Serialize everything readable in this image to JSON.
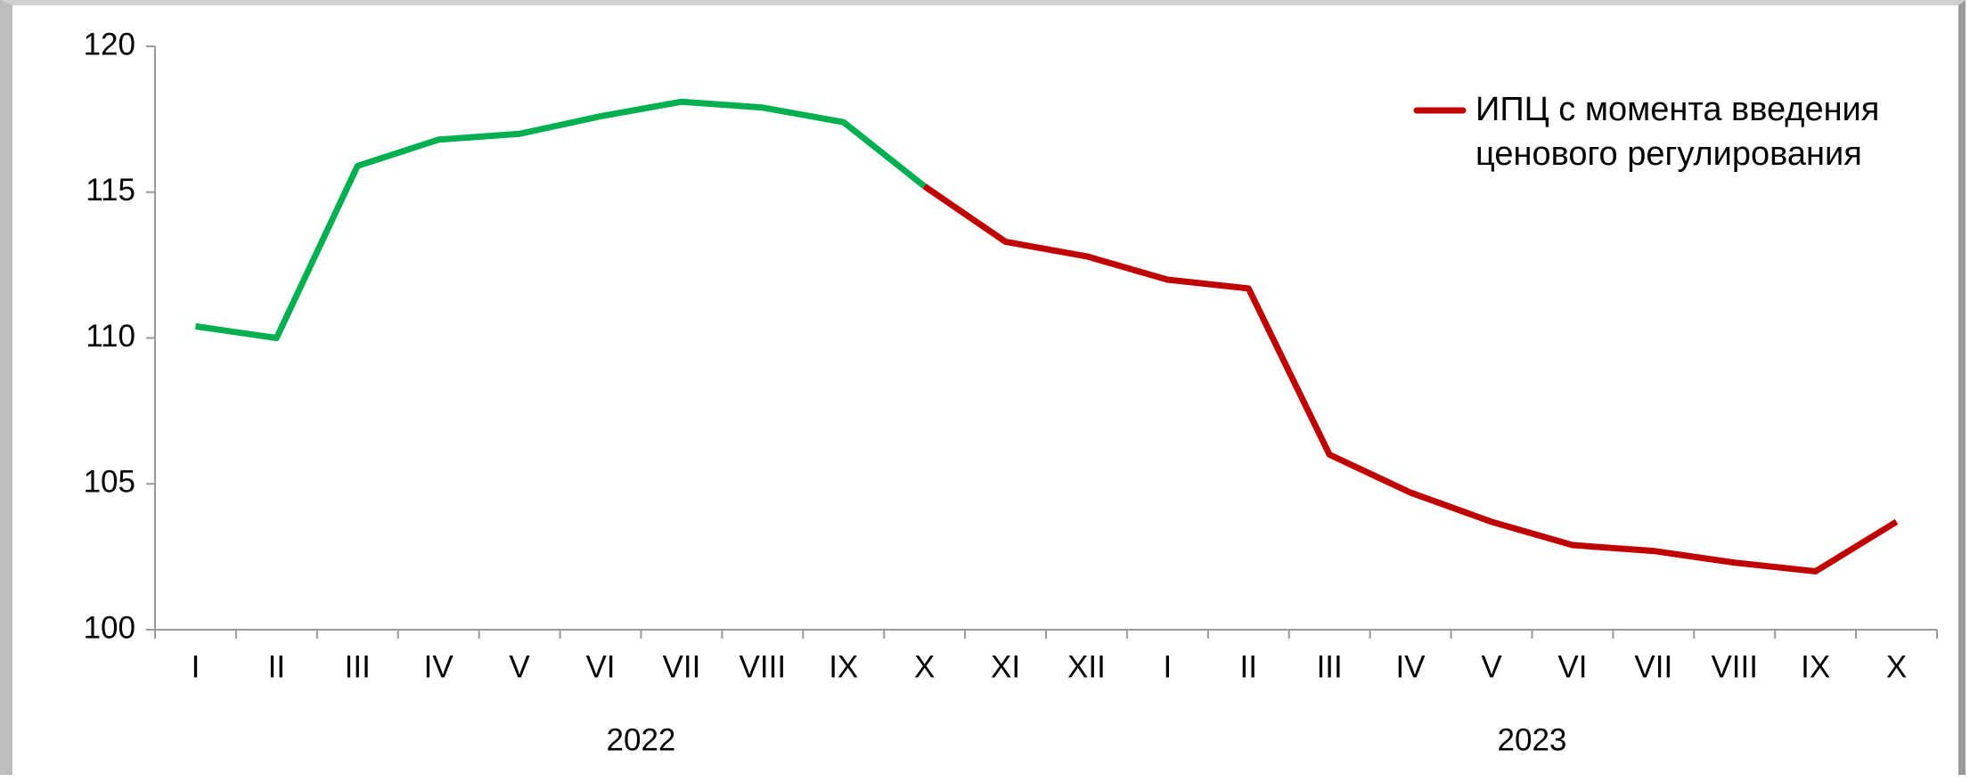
{
  "chart_data": {
    "type": "line",
    "categories": [
      "I",
      "II",
      "III",
      "IV",
      "V",
      "VI",
      "VII",
      "VIII",
      "IX",
      "X",
      "XI",
      "XII",
      "I",
      "II",
      "III",
      "IV",
      "V",
      "VI",
      "VII",
      "VIII",
      "IX",
      "X"
    ],
    "groups": [
      {
        "label": "2022",
        "span": 12
      },
      {
        "label": "2023",
        "span": 10
      }
    ],
    "series": [
      {
        "color": "#00b050",
        "values": [
          110.4,
          110.0,
          115.9,
          116.8,
          117.0,
          117.6,
          118.1,
          117.9,
          117.4,
          115.2,
          null,
          null,
          null,
          null,
          null,
          null,
          null,
          null,
          null,
          null,
          null,
          null
        ]
      },
      {
        "name": "ИПЦ с момента введения ценового регулирования",
        "color": "#c00000",
        "values": [
          null,
          null,
          null,
          null,
          null,
          null,
          null,
          null,
          null,
          115.2,
          113.3,
          112.8,
          112.0,
          111.7,
          106.0,
          104.7,
          103.7,
          102.9,
          102.7,
          102.3,
          102.0,
          103.7
        ]
      }
    ],
    "ylim": [
      100,
      120
    ],
    "yticks": [
      100,
      105,
      110,
      115,
      120
    ],
    "grid": false,
    "legend": "upper right"
  }
}
